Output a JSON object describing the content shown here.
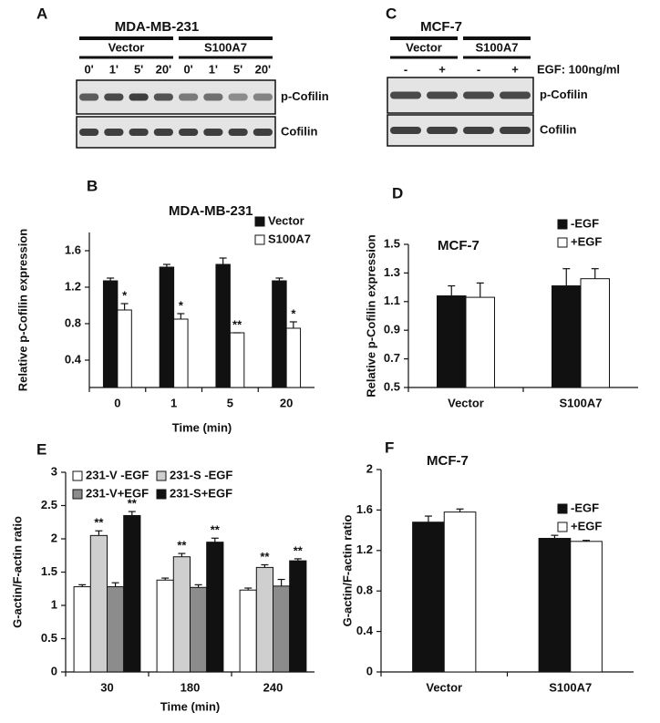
{
  "blots": [
    {
      "panel": "A",
      "title": "MDA-MB-231",
      "groups": [
        "Vector",
        "S100A7"
      ],
      "lanes": [
        "0'",
        "1'",
        "5'",
        "20'",
        "0'",
        "1'",
        "5'",
        "20'"
      ],
      "rows": [
        "p-Cofilin",
        "Cofilin"
      ]
    },
    {
      "panel": "C",
      "title": "MCF-7",
      "groups": [
        "Vector",
        "S100A7"
      ],
      "lanes": [
        "-",
        "+",
        "-",
        "+"
      ],
      "treatment": "EGF: 100ng/ml",
      "rows": [
        "p-Cofilin",
        "Cofilin"
      ]
    }
  ],
  "chart_data": [
    {
      "type": "bar",
      "panel": "B",
      "title": "MDA-MB-231",
      "ylabel": "Relative p-Cofilin expression",
      "xlabel": "Time (min)",
      "categories": [
        "0",
        "1",
        "5",
        "20"
      ],
      "series": [
        {
          "name": "Vector",
          "color": "#111111",
          "values": [
            1.27,
            1.42,
            1.45,
            1.27
          ],
          "errors": [
            0.03,
            0.03,
            0.07,
            0.03
          ]
        },
        {
          "name": "S100A7",
          "color": "#ffffff",
          "values": [
            0.95,
            0.85,
            0.7,
            0.75
          ],
          "errors": [
            0.07,
            0.06,
            0.0,
            0.07
          ],
          "annotations": [
            "*",
            "*",
            "**",
            "*"
          ]
        }
      ],
      "ylim": [
        0.1,
        1.8
      ],
      "yticks": [
        0.4,
        0.8,
        1.2,
        1.6
      ],
      "legend": "upper right"
    },
    {
      "type": "bar",
      "panel": "D",
      "title": "MCF-7",
      "ylabel": "Relative p-Cofilin expression",
      "xlabel": null,
      "categories": [
        "Vector",
        "S100A7"
      ],
      "series": [
        {
          "name": "-EGF",
          "color": "#111111",
          "values": [
            1.14,
            1.21
          ],
          "errors": [
            0.07,
            0.12
          ]
        },
        {
          "name": "+EGF",
          "color": "#ffffff",
          "values": [
            1.13,
            1.26
          ],
          "errors": [
            0.1,
            0.07
          ]
        }
      ],
      "ylim": [
        0.5,
        1.5
      ],
      "yticks": [
        0.5,
        0.7,
        0.9,
        1.1,
        1.3,
        1.5
      ],
      "legend": "upper right"
    },
    {
      "type": "bar",
      "panel": "E",
      "title": null,
      "ylabel": "G-actin/F-actin ratio",
      "xlabel": "Time (min)",
      "categories": [
        "30",
        "180",
        "240"
      ],
      "series": [
        {
          "name": "231-V -EGF",
          "color": "#ffffff",
          "values": [
            1.28,
            1.38,
            1.23
          ],
          "errors": [
            0.03,
            0.03,
            0.03
          ]
        },
        {
          "name": "231-S -EGF",
          "color": "#cfcfcf",
          "values": [
            2.05,
            1.73,
            1.57
          ],
          "errors": [
            0.07,
            0.05,
            0.04
          ],
          "annotations": [
            "**",
            "**",
            "**"
          ]
        },
        {
          "name": "231-V+EGF",
          "color": "#8c8c8c",
          "values": [
            1.28,
            1.27,
            1.29
          ],
          "errors": [
            0.06,
            0.04,
            0.1
          ]
        },
        {
          "name": "231-S+EGF",
          "color": "#111111",
          "values": [
            2.35,
            1.95,
            1.67
          ],
          "errors": [
            0.06,
            0.06,
            0.03
          ],
          "annotations": [
            "**",
            "**",
            "**"
          ]
        }
      ],
      "ylim": [
        0,
        3
      ],
      "yticks": [
        0,
        0.5,
        1,
        1.5,
        2,
        2.5,
        3
      ],
      "legend": "upper left"
    },
    {
      "type": "bar",
      "panel": "F",
      "title": "MCF-7",
      "ylabel": "G-actin/F-actin ratio",
      "xlabel": null,
      "categories": [
        "Vector",
        "S100A7"
      ],
      "series": [
        {
          "name": "-EGF",
          "color": "#111111",
          "values": [
            1.48,
            1.32
          ],
          "errors": [
            0.06,
            0.03
          ]
        },
        {
          "name": "+EGF",
          "color": "#ffffff",
          "values": [
            1.58,
            1.29
          ],
          "errors": [
            0.03,
            0.01
          ]
        }
      ],
      "ylim": [
        0,
        2
      ],
      "yticks": [
        0,
        0.4,
        0.8,
        1.2,
        1.6,
        2
      ],
      "legend": "upper right"
    }
  ]
}
